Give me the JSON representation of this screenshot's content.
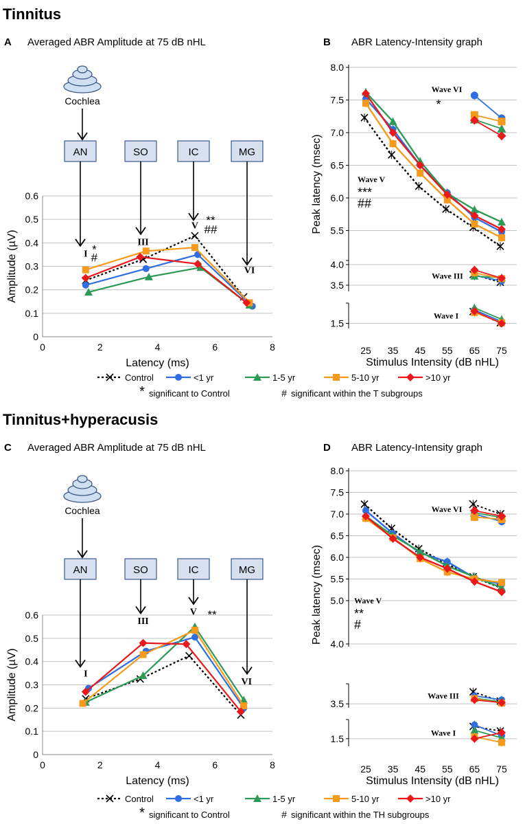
{
  "figure": {
    "sections": [
      {
        "title": "Tinnitus"
      },
      {
        "title": "Tinnitus+hyperacusis"
      }
    ],
    "series_legend": [
      {
        "name": "Control",
        "color": "#000000",
        "marker": "x",
        "dashed": true
      },
      {
        "name": "<1 yr",
        "color": "#2e6ee0",
        "marker": "circle",
        "dashed": false
      },
      {
        "name": "1-5 yr",
        "color": "#2e9a57",
        "marker": "triangle",
        "dashed": false
      },
      {
        "name": "5-10 yr",
        "color": "#f59a1a",
        "marker": "square",
        "dashed": false
      },
      {
        "name": ">10 yr",
        "color": "#e8181b",
        "marker": "diamond",
        "dashed": false
      }
    ],
    "notes": [
      {
        "symbol": "*",
        "text": "significant to Control",
        "group_text": "significant within the T subgroups"
      },
      {
        "symbol": "*",
        "text": "significant to Control",
        "group_text": "significant within the TH subgroups"
      }
    ],
    "note_hash": "#",
    "colors": {
      "box_fill": "#d6e0ee",
      "box_border": "#3a5a8c",
      "grid": "#c0c0c0",
      "cochlea_fill": "#cfe0f3",
      "cochlea_stroke": "#3d5a80"
    }
  },
  "chart_data": [
    {
      "panel": "A",
      "type": "line",
      "title": "Averaged ABR Amplitude at 75 dB nHL",
      "xlabel": "Latency (ms)",
      "ylabel": "Amplitude (µV)",
      "xlim": [
        0,
        8
      ],
      "ylim": [
        0,
        0.6
      ],
      "xticks": [
        "0",
        "2",
        "4",
        "6",
        "8"
      ],
      "yticks": [
        "0",
        "0.1",
        "0.2",
        "0.3",
        "0.4",
        "0.5",
        "0.6"
      ],
      "cochlea_label": "Cochlea",
      "structures": [
        {
          "label": "AN",
          "wave_x": 1.5,
          "wave_y": 0.34
        },
        {
          "label": "SO",
          "wave_x": 3.5,
          "wave_y": 0.39
        },
        {
          "label": "IC",
          "wave_x": 5.2,
          "wave_y": 0.45
        },
        {
          "label": "MG",
          "wave_x": 7.1,
          "wave_y": 0.26
        }
      ],
      "wave_labels": [
        {
          "text": "I",
          "x": 1.5,
          "y": 0.335
        },
        {
          "text": "III",
          "x": 3.5,
          "y": 0.385
        },
        {
          "text": "V",
          "x": 5.3,
          "y": 0.455
        },
        {
          "text": "VI",
          "x": 7.2,
          "y": 0.265
        }
      ],
      "annotations": [
        {
          "text": "*",
          "x": 1.8,
          "y": 0.355
        },
        {
          "text": "#",
          "x": 1.8,
          "y": 0.32
        },
        {
          "text": "**",
          "x": 5.85,
          "y": 0.48
        },
        {
          "text": "##",
          "x": 5.85,
          "y": 0.44
        }
      ],
      "series": [
        {
          "name": "Control",
          "x": [
            1.5,
            3.5,
            5.3,
            7.0
          ],
          "values": [
            0.24,
            0.33,
            0.43,
            0.17
          ]
        },
        {
          "name": "<1 yr",
          "x": [
            1.5,
            3.6,
            5.4,
            7.3
          ],
          "values": [
            0.22,
            0.29,
            0.35,
            0.13
          ]
        },
        {
          "name": "1-5 yr",
          "x": [
            1.6,
            3.7,
            5.5,
            7.2
          ],
          "values": [
            0.19,
            0.255,
            0.295,
            0.135
          ]
        },
        {
          "name": "5-10 yr",
          "x": [
            1.5,
            3.6,
            5.3,
            7.2
          ],
          "values": [
            0.285,
            0.365,
            0.38,
            0.145
          ]
        },
        {
          "name": ">10 yr",
          "x": [
            1.5,
            3.4,
            5.4,
            7.1
          ],
          "values": [
            0.25,
            0.34,
            0.31,
            0.145
          ]
        }
      ]
    },
    {
      "panel": "B",
      "type": "line",
      "title": "ABR Latency-Intensity graph",
      "xlabel": "Stimulus Intensity (dB nHL)",
      "ylabel": "Peak latency (msec)",
      "categories": [
        "25",
        "35",
        "45",
        "55",
        "65",
        "75"
      ],
      "ylim": [
        5.0,
        8.0
      ],
      "yticks": [
        "8.0",
        "7.5",
        "7.0",
        "6.5",
        "6.0",
        "5.5"
      ],
      "lower_axes": [
        {
          "wave": "Wave III",
          "ylim": [
            3.35,
            4.1
          ],
          "yticks": [
            "4.0",
            "3.5"
          ]
        },
        {
          "wave": "Wave I",
          "ylim": [
            1.35,
            2.1
          ],
          "yticks": [
            "1.5"
          ]
        }
      ],
      "wave_labels": [
        {
          "text": "Wave VI",
          "sig": [
            "*"
          ]
        },
        {
          "text": "Wave V",
          "sig": [
            "***",
            "##"
          ]
        }
      ],
      "wave_v": [
        {
          "name": "Control",
          "values": [
            7.23,
            6.66,
            6.18,
            5.83,
            5.55,
            5.26
          ]
        },
        {
          "name": "<1 yr",
          "values": [
            7.52,
            7.05,
            6.5,
            6.08,
            5.7,
            5.48
          ]
        },
        {
          "name": "1-5 yr",
          "values": [
            7.62,
            7.17,
            6.56,
            6.07,
            5.82,
            5.63
          ]
        },
        {
          "name": "5-10 yr",
          "values": [
            7.45,
            6.83,
            6.38,
            5.97,
            5.6,
            5.39
          ]
        },
        {
          "name": ">10 yr",
          "values": [
            7.6,
            7.0,
            6.5,
            6.05,
            5.73,
            5.52
          ]
        }
      ],
      "wave_vi": [
        {
          "name": "<1 yr",
          "values": [
            7.57,
            7.22
          ]
        },
        {
          "name": "1-5 yr",
          "values": [
            7.2,
            7.06
          ]
        },
        {
          "name": "5-10 yr",
          "values": [
            7.27,
            7.17
          ]
        },
        {
          "name": ">10 yr",
          "values": [
            7.19,
            6.95
          ]
        }
      ],
      "wave_iii": [
        {
          "name": "Control",
          "values": [
            3.76,
            3.57
          ]
        },
        {
          "name": "<1 yr",
          "values": [
            3.74,
            3.6
          ]
        },
        {
          "name": "1-5 yr",
          "values": [
            3.72,
            3.68
          ]
        },
        {
          "name": "5-10 yr",
          "values": [
            3.8,
            3.66
          ]
        },
        {
          "name": ">10 yr",
          "values": [
            3.87,
            3.67
          ]
        }
      ],
      "wave_i": [
        {
          "name": "Control",
          "values": [
            1.85,
            1.52
          ]
        },
        {
          "name": "<1 yr",
          "values": [
            1.9,
            1.55
          ]
        },
        {
          "name": "1-5 yr",
          "values": [
            1.96,
            1.62
          ]
        },
        {
          "name": "5-10 yr",
          "values": [
            1.82,
            1.52
          ]
        },
        {
          "name": ">10 yr",
          "values": [
            1.86,
            1.5
          ]
        }
      ]
    },
    {
      "panel": "C",
      "type": "line",
      "title": "Averaged ABR Amplitude at 75 dB nHL",
      "xlabel": "Latency (ms)",
      "ylabel": "Amplitude (µV)",
      "xlim": [
        0,
        8
      ],
      "ylim": [
        0,
        0.6
      ],
      "xticks": [
        "0",
        "2",
        "4",
        "6",
        "8"
      ],
      "yticks": [
        "0",
        "0.1",
        "0.2",
        "0.3",
        "0.4",
        "0.5",
        "0.6"
      ],
      "cochlea_label": "Cochlea",
      "structures": [
        {
          "label": "AN",
          "wave_x": 1.5,
          "wave_y": 0.33
        },
        {
          "label": "SO",
          "wave_x": 3.5,
          "wave_y": 0.56
        },
        {
          "label": "IC",
          "wave_x": 5.2,
          "wave_y": 0.6
        },
        {
          "label": "MG",
          "wave_x": 7.0,
          "wave_y": 0.3
        }
      ],
      "wave_labels": [
        {
          "text": "I",
          "x": 1.5,
          "y": 0.33
        },
        {
          "text": "III",
          "x": 3.5,
          "y": 0.555
        },
        {
          "text": "V",
          "x": 5.25,
          "y": 0.595
        },
        {
          "text": "VI",
          "x": 7.1,
          "y": 0.295
        }
      ],
      "annotations": [
        {
          "text": "**",
          "x": 5.9,
          "y": 0.585
        }
      ],
      "series": [
        {
          "name": "Control",
          "x": [
            1.5,
            3.4,
            5.1,
            6.9
          ],
          "values": [
            0.24,
            0.325,
            0.425,
            0.17
          ]
        },
        {
          "name": "<1 yr",
          "x": [
            1.6,
            3.6,
            5.3,
            7.0
          ],
          "values": [
            0.285,
            0.445,
            0.505,
            0.2
          ]
        },
        {
          "name": "1-5 yr",
          "x": [
            1.5,
            3.5,
            5.3,
            7.0
          ],
          "values": [
            0.225,
            0.34,
            0.55,
            0.235
          ]
        },
        {
          "name": "5-10 yr",
          "x": [
            1.4,
            3.5,
            5.3,
            7.0
          ],
          "values": [
            0.22,
            0.43,
            0.535,
            0.21
          ]
        },
        {
          "name": ">10 yr",
          "x": [
            1.5,
            3.5,
            5.0,
            6.9
          ],
          "values": [
            0.27,
            0.48,
            0.475,
            0.185
          ]
        }
      ]
    },
    {
      "panel": "D",
      "type": "line",
      "title": "ABR Latency-Intensity graph",
      "xlabel": "Stimulus Intensity (dB nHL)",
      "ylabel": "Peak latency (msec)",
      "categories": [
        "25",
        "35",
        "45",
        "55",
        "65",
        "75"
      ],
      "ylim": [
        4.0,
        8.0
      ],
      "yticks": [
        "8.0",
        "7.5",
        "7.0",
        "6.5",
        "6.0",
        "5.5",
        "5.0",
        "4.0"
      ],
      "lower_axes": [
        {
          "wave": "Wave III",
          "ylim": [
            3.4,
            4.0
          ],
          "yticks": [
            "3.5"
          ]
        },
        {
          "wave": "Wave I",
          "ylim": [
            1.3,
            2.0
          ],
          "yticks": [
            "1.5"
          ]
        }
      ],
      "wave_labels": [
        {
          "text": "Wave VI",
          "sig": []
        },
        {
          "text": "Wave V",
          "sig": [
            "**",
            "#"
          ]
        }
      ],
      "wave_v": [
        {
          "name": "Control",
          "values": [
            7.23,
            6.67,
            6.2,
            5.86,
            5.55,
            5.3
          ]
        },
        {
          "name": "<1 yr",
          "values": [
            7.08,
            6.55,
            6.1,
            5.9,
            5.53,
            5.38
          ]
        },
        {
          "name": "1-5 yr",
          "values": [
            6.95,
            6.5,
            6.13,
            5.8,
            5.55,
            5.3
          ]
        },
        {
          "name": "5-10 yr",
          "values": [
            6.9,
            6.45,
            5.97,
            5.66,
            5.5,
            5.42
          ]
        },
        {
          "name": ">10 yr",
          "values": [
            6.95,
            6.43,
            6.0,
            5.74,
            5.44,
            5.2
          ]
        }
      ],
      "wave_vi": [
        {
          "name": "Control",
          "values": [
            7.23,
            7.0
          ]
        },
        {
          "name": "<1 yr",
          "values": [
            7.0,
            6.83
          ]
        },
        {
          "name": "1-5 yr",
          "values": [
            7.03,
            6.92
          ]
        },
        {
          "name": "5-10 yr",
          "values": [
            6.93,
            6.88
          ]
        },
        {
          "name": ">10 yr",
          "values": [
            7.08,
            6.95
          ]
        }
      ],
      "wave_iii": [
        {
          "name": "Control",
          "values": [
            3.8,
            3.57
          ]
        },
        {
          "name": "<1 yr",
          "values": [
            3.7,
            3.6
          ]
        },
        {
          "name": "1-5 yr",
          "values": [
            3.64,
            3.55
          ]
        },
        {
          "name": "5-10 yr",
          "values": [
            3.63,
            3.52
          ]
        },
        {
          "name": ">10 yr",
          "values": [
            3.6,
            3.53
          ]
        }
      ],
      "wave_i": [
        {
          "name": "Control",
          "values": [
            1.82,
            1.7
          ]
        },
        {
          "name": "<1 yr",
          "values": [
            1.86,
            1.58
          ]
        },
        {
          "name": "1-5 yr",
          "values": [
            1.72,
            1.52
          ]
        },
        {
          "name": "5-10 yr",
          "values": [
            1.55,
            1.4
          ]
        },
        {
          "name": ">10 yr",
          "values": [
            1.5,
            1.66
          ]
        }
      ]
    }
  ]
}
